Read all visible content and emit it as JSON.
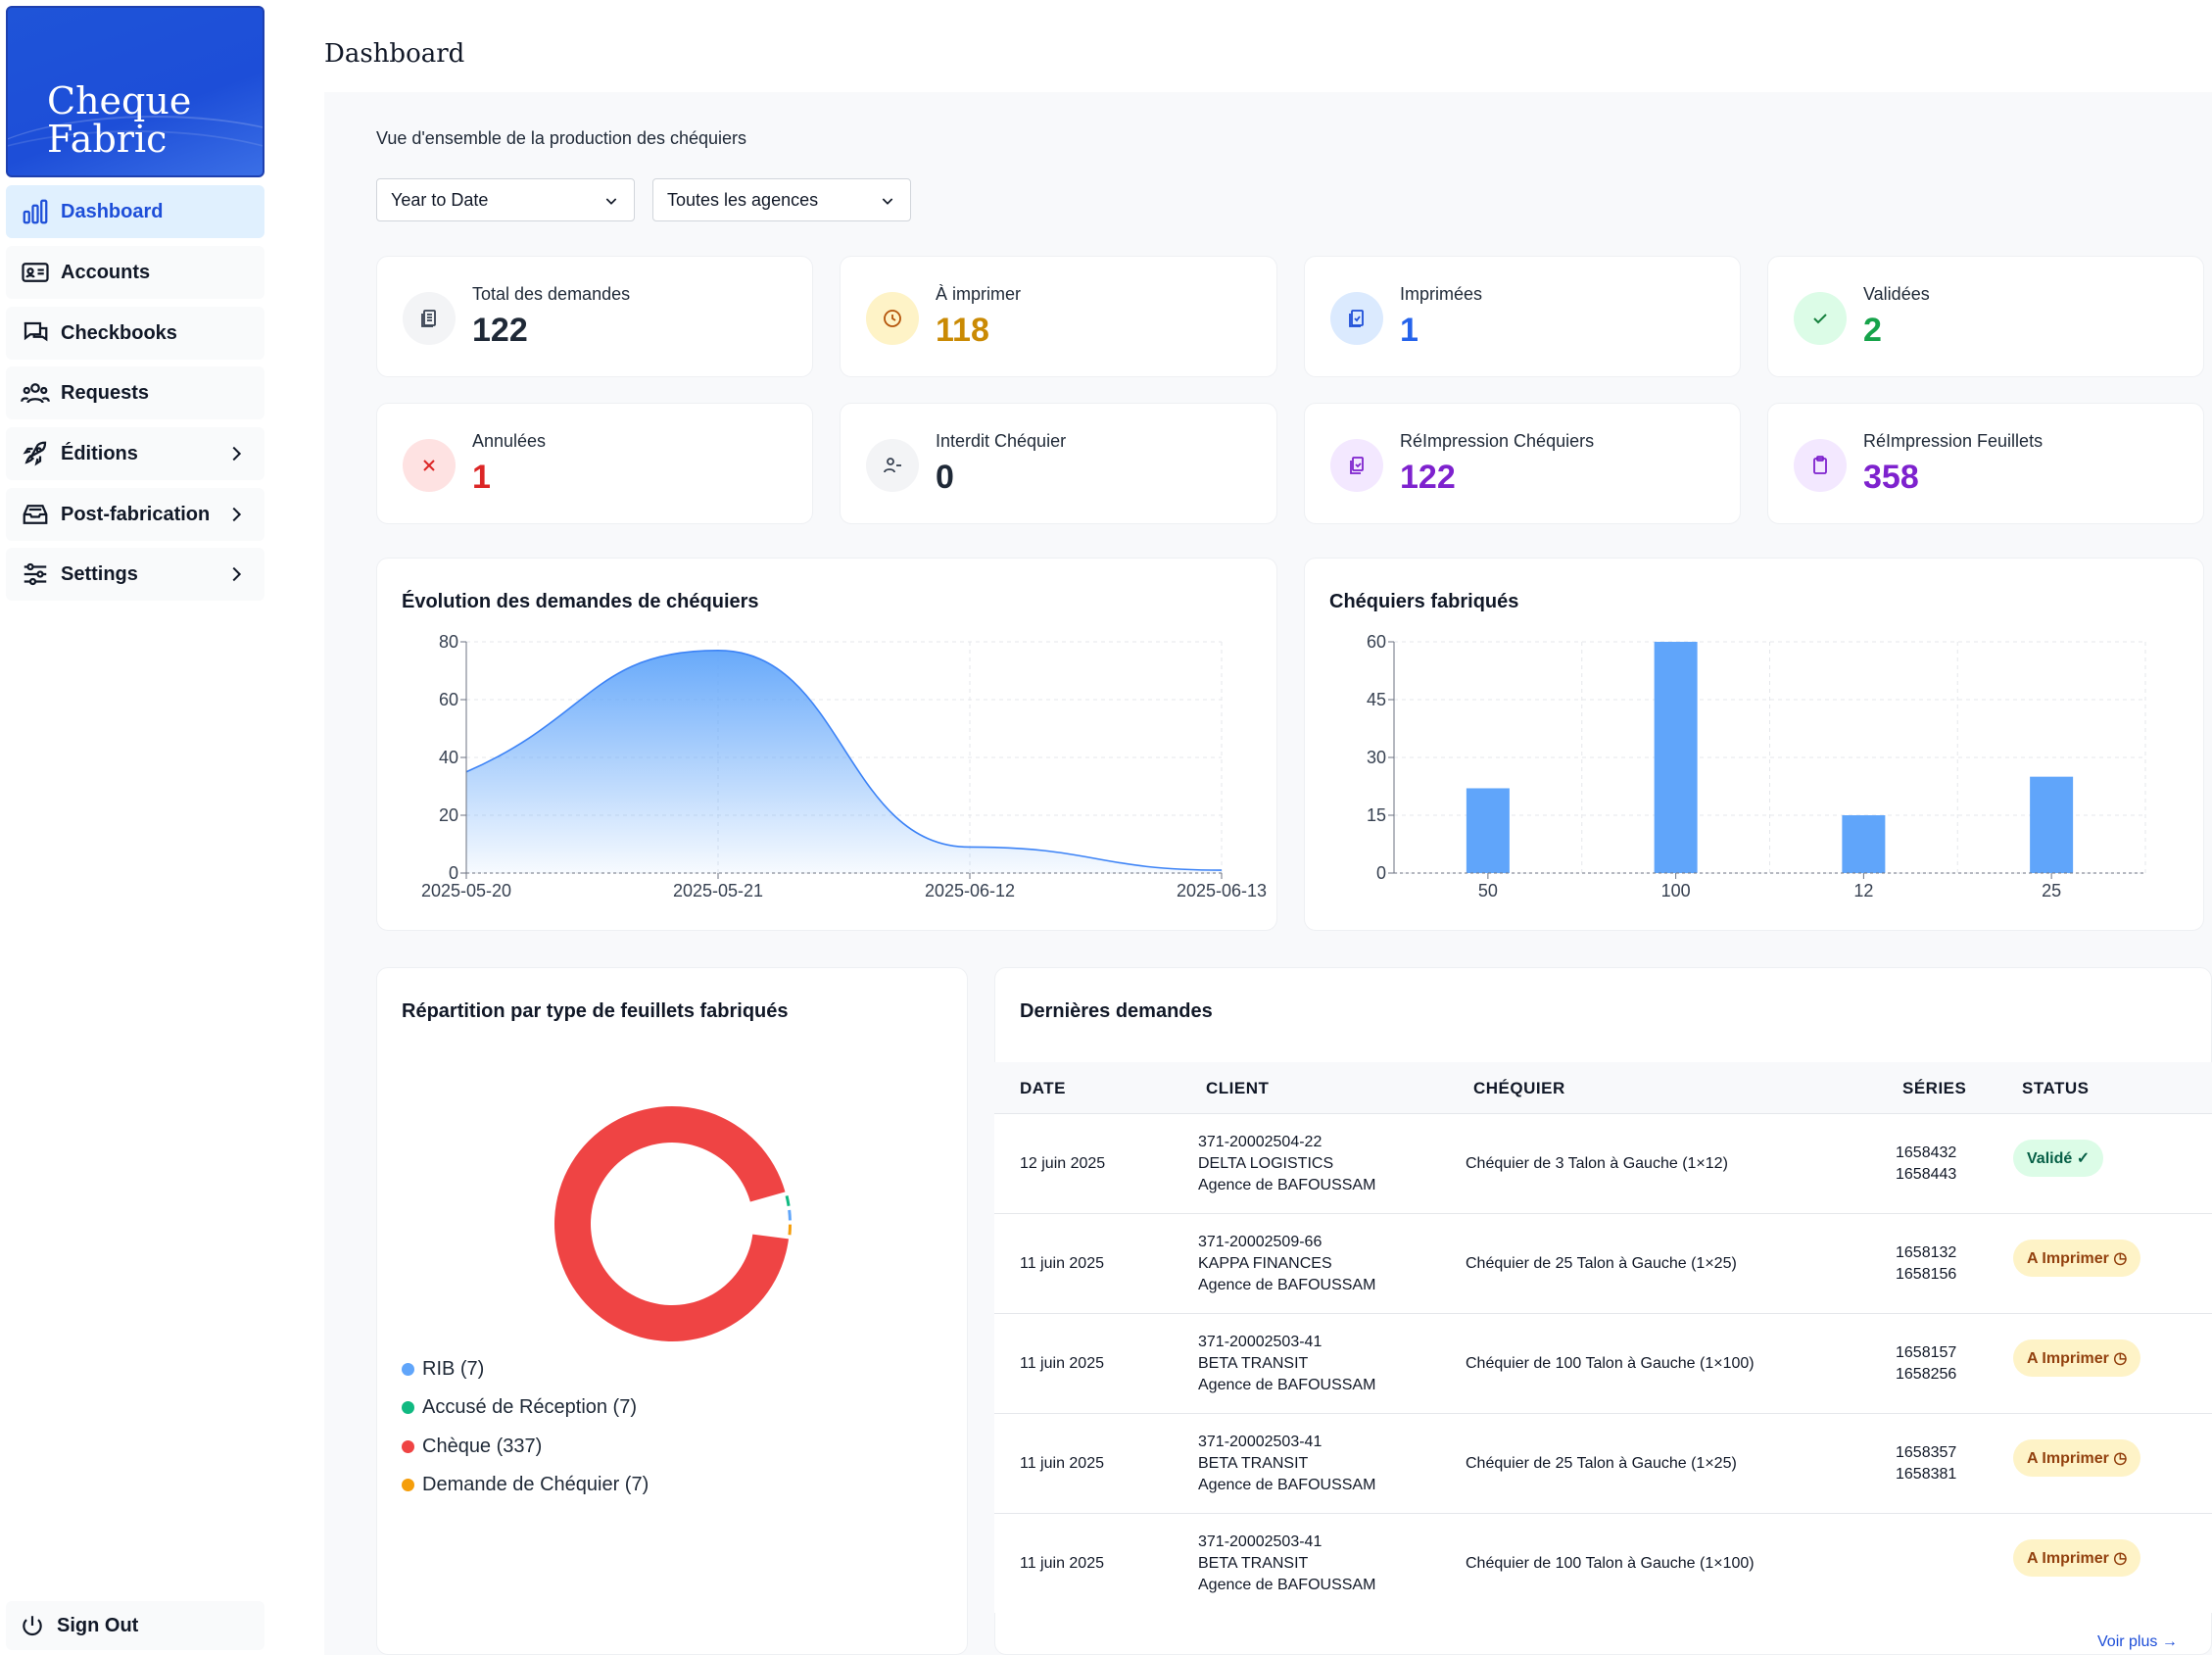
{
  "sidebar": {
    "logo": [
      "Cheque",
      "Fabric"
    ],
    "items": [
      {
        "label": "Dashboard"
      },
      {
        "label": "Accounts"
      },
      {
        "label": "Checkbooks"
      },
      {
        "label": "Requests"
      },
      {
        "label": "Éditions"
      },
      {
        "label": "Post-fabrication"
      },
      {
        "label": "Settings"
      }
    ],
    "signout": "Sign Out"
  },
  "header": {
    "title": "Dashboard"
  },
  "overview": {
    "subtitle": "Vue d'ensemble de la production des chéquiers",
    "period": "Year to Date",
    "agency": "Toutes les agences"
  },
  "stats": [
    {
      "label": "Total des demandes",
      "value": "122",
      "color": "#1f2937",
      "icon": "document-stack-icon"
    },
    {
      "label": "À imprimer",
      "value": "118",
      "color": "#ca8a04",
      "icon": "clock-icon"
    },
    {
      "label": "Imprimées",
      "value": "1",
      "color": "#2563eb",
      "icon": "printed-check-icon"
    },
    {
      "label": "Validées",
      "value": "2",
      "color": "#16a34a",
      "icon": "check-icon"
    },
    {
      "label": "Annulées",
      "value": "1",
      "color": "#dc2626",
      "icon": "x-icon"
    },
    {
      "label": "Interdit Chéquier",
      "value": "0",
      "color": "#1f2937",
      "icon": "user-minus-icon"
    },
    {
      "label": "RéImpression Chéquiers",
      "value": "122",
      "color": "#7e22ce",
      "icon": "copy-icon"
    },
    {
      "label": "RéImpression Feuillets",
      "value": "358",
      "color": "#7e22ce",
      "icon": "clipboard-icon"
    }
  ],
  "chart_data": [
    {
      "type": "area",
      "title": "Évolution des demandes de chéquiers",
      "x": [
        "2025-05-20",
        "2025-05-21",
        "2025-06-12",
        "2025-06-13"
      ],
      "values": [
        35,
        77,
        9,
        1
      ],
      "ylim": [
        0,
        80
      ],
      "yticks": [
        0,
        20,
        40,
        60,
        80
      ],
      "grid": true,
      "color": "#60a5fa"
    },
    {
      "type": "bar",
      "title": "Chéquiers fabriqués",
      "categories": [
        "50",
        "100",
        "12",
        "25"
      ],
      "values": [
        22,
        60,
        15,
        25
      ],
      "ylim": [
        0,
        60
      ],
      "yticks": [
        0,
        15,
        30,
        45,
        60
      ],
      "grid": true,
      "color": "#60a5fa"
    },
    {
      "type": "pie",
      "title": "Répartition par type de feuillets fabriqués",
      "legend_position": "bottom-left",
      "slices": [
        {
          "label": "RIB (7)",
          "value": 7,
          "color": "#60a5fa"
        },
        {
          "label": "Accusé de Réception (7)",
          "value": 7,
          "color": "#10b981"
        },
        {
          "label": "Chèque (337)",
          "value": 337,
          "color": "#ef4444"
        },
        {
          "label": "Demande de Chéquier (7)",
          "value": 7,
          "color": "#f59e0b"
        }
      ]
    }
  ],
  "table": {
    "title": "Dernières demandes",
    "headers": [
      "DATE",
      "CLIENT",
      "CHÉQUIER",
      "SÉRIES",
      "STATUS"
    ],
    "rows": [
      {
        "date": "12 juin 2025",
        "client": [
          "371-20002504-22",
          "DELTA LOGISTICS",
          "Agence de BAFOUSSAM"
        ],
        "chequier": "Chéquier de 3 Talon à Gauche (1×12)",
        "series": [
          "1658432",
          "1658443"
        ],
        "status": "Validé ✓",
        "kind": "ok"
      },
      {
        "date": "11 juin 2025",
        "client": [
          "371-20002509-66",
          "KAPPA FINANCES",
          "Agence de BAFOUSSAM"
        ],
        "chequier": "Chéquier de 25 Talon à Gauche (1×25)",
        "series": [
          "1658132",
          "1658156"
        ],
        "status": "A Imprimer ◷",
        "kind": "warn"
      },
      {
        "date": "11 juin 2025",
        "client": [
          "371-20002503-41",
          "BETA TRANSIT",
          "Agence de BAFOUSSAM"
        ],
        "chequier": "Chéquier de 100 Talon à Gauche (1×100)",
        "series": [
          "1658157",
          "1658256"
        ],
        "status": "A Imprimer ◷",
        "kind": "warn"
      },
      {
        "date": "11 juin 2025",
        "client": [
          "371-20002503-41",
          "BETA TRANSIT",
          "Agence de BAFOUSSAM"
        ],
        "chequier": "Chéquier de 25 Talon à Gauche (1×25)",
        "series": [
          "1658357",
          "1658381"
        ],
        "status": "A Imprimer ◷",
        "kind": "warn"
      },
      {
        "date": "11 juin 2025",
        "client": [
          "371-20002503-41",
          "BETA TRANSIT",
          "Agence de BAFOUSSAM"
        ],
        "chequier": "Chéquier de 100 Talon à Gauche (1×100)",
        "series": [
          "",
          ""
        ],
        "status": "A Imprimer ◷",
        "kind": "warn"
      }
    ],
    "more": "Voir plus →"
  }
}
